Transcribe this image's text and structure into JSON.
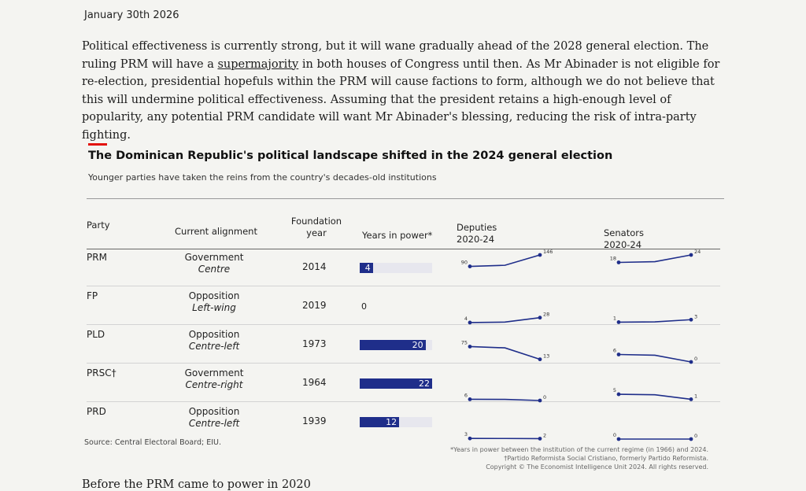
{
  "date": "January 30th 2026",
  "paragraph": {
    "p1": "Political effectiveness is currently strong, but it will wane gradually ahead of the 2028 general election. The ruling PRM will have a ",
    "link": "supermajority",
    "p2": " in both houses of Congress until then. As Mr Abinader is not eligible for re-election, presidential hopefuls within the PRM will cause factions to form, although we do not believe that this will undermine political effectiveness. Assuming that the president retains a high-enough level of popularity, any potential PRM candidate will want Mr Abinader's blessing, reducing the risk of intra-party fighting."
  },
  "chart": {
    "title": "The Dominican Republic's political landscape shifted in the 2024 general election",
    "subtitle": "Younger parties have taken the reins from the country's decades-old institutions",
    "headers": {
      "party": "Party",
      "alignment": "Current alignment",
      "foundation": "Foundation year",
      "years": "Years in power*",
      "deputies": "Deputies 2020-24",
      "senators": "Senators 2020-24"
    },
    "rows": [
      {
        "party": "PRM",
        "status": "Government",
        "lean": "Centre",
        "year": "2014",
        "years_in_power": 4,
        "years_label": "4",
        "dep_2020": 90,
        "dep_2024": 146,
        "dep_2020_label": "90",
        "dep_2024_label": "146",
        "sen_2020": 18,
        "sen_2024": 24,
        "sen_2020_label": "18",
        "sen_2024_label": "24"
      },
      {
        "party": "FP",
        "status": "Opposition",
        "lean": "Left-wing",
        "year": "2019",
        "years_in_power": 0,
        "years_label": "0",
        "dep_2020": 4,
        "dep_2024": 28,
        "dep_2020_label": "4",
        "dep_2024_label": "28",
        "sen_2020": 1,
        "sen_2024": 3,
        "sen_2020_label": "1",
        "sen_2024_label": "3"
      },
      {
        "party": "PLD",
        "status": "Opposition",
        "lean": "Centre-left",
        "year": "1973",
        "years_in_power": 20,
        "years_label": "20",
        "dep_2020": 75,
        "dep_2024": 13,
        "dep_2020_label": "75",
        "dep_2024_label": "13",
        "sen_2020": 6,
        "sen_2024": 0,
        "sen_2020_label": "6",
        "sen_2024_label": "0"
      },
      {
        "party": "PRSC†",
        "status": "Government",
        "lean": "Centre-right",
        "year": "1964",
        "years_in_power": 22,
        "years_label": "22",
        "dep_2020": 6,
        "dep_2024": 0,
        "dep_2020_label": "6",
        "dep_2024_label": "0",
        "sen_2020": 5,
        "sen_2024": 1,
        "sen_2020_label": "5",
        "sen_2024_label": "1"
      },
      {
        "party": "PRD",
        "status": "Opposition",
        "lean": "Centre-left",
        "year": "1939",
        "years_in_power": 12,
        "years_label": "12",
        "dep_2020": 3,
        "dep_2024": 2,
        "dep_2020_label": "3",
        "dep_2024_label": "2",
        "sen_2020": 0,
        "sen_2024": 0,
        "sen_2020_label": "0",
        "sen_2024_label": "0"
      }
    ],
    "source": "Source: Central Electoral Board; EIU.",
    "footnotes": [
      "*Years in power between the institution of the current regime (in 1966) and 2024.",
      "†Partido Reformista Social Cristiano, formerly Partido Reformista.",
      "Copyright © The Economist Intelligence Unit 2024. All rights reserved."
    ],
    "bar_color": "#1f2e8a",
    "accent_color": "#e3120b"
  },
  "bottom_text": "Before the PRM came to power in 2020"
}
